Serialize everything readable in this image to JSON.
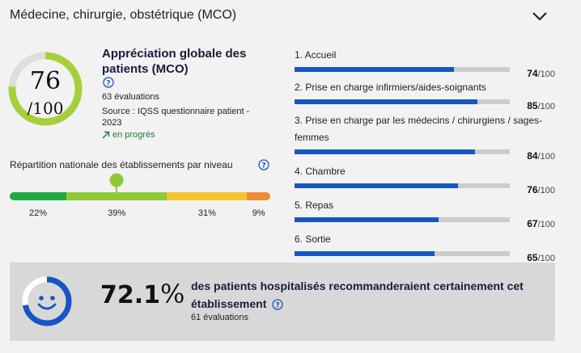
{
  "header": {
    "title": "Médecine, chirurgie, obstétrique (MCO)"
  },
  "global": {
    "title": "Appréciation globale des patients (MCO)",
    "score": "76",
    "max": "/100",
    "score_value": 76,
    "evaluations": "63 évaluations",
    "source": "Source : IQSS questionnaire patient - 2023",
    "trend": "en progrès"
  },
  "distribution": {
    "title": "Répartition nationale des établissements par niveau",
    "marker_segment": 1,
    "segments": [
      {
        "label": "22%",
        "value": 22,
        "color": "#1fa945"
      },
      {
        "label": "39%",
        "value": 39,
        "color": "#8fc93a"
      },
      {
        "label": "31%",
        "value": 31,
        "color": "#f4c42c"
      },
      {
        "label": "9%",
        "value": 9,
        "color": "#f08a36"
      }
    ]
  },
  "categories": [
    {
      "label": "1. Accueil",
      "score": "74",
      "value": 74,
      "unit": "/100"
    },
    {
      "label": "2. Prise en charge infirmiers/aides-soignants",
      "score": "85",
      "value": 85,
      "unit": "/100"
    },
    {
      "label": "3. Prise en charge par les médecins / chirurgiens / sages-femmes",
      "score": "84",
      "value": 84,
      "unit": "/100"
    },
    {
      "label": "4. Chambre",
      "score": "76",
      "value": 76,
      "unit": "/100"
    },
    {
      "label": "5. Repas",
      "score": "67",
      "value": 67,
      "unit": "/100"
    },
    {
      "label": "6. Sortie",
      "score": "65",
      "value": 65,
      "unit": "/100"
    }
  ],
  "recommendation": {
    "value": "72.1",
    "percent_sign": "%",
    "text": "des patients hospitalisés recommanderaient certainement cet établissement",
    "evaluations": "61 évaluations"
  },
  "colors": {
    "accent": "#1556c4",
    "gauge": "#a6d03b",
    "track": "#dddddd"
  }
}
